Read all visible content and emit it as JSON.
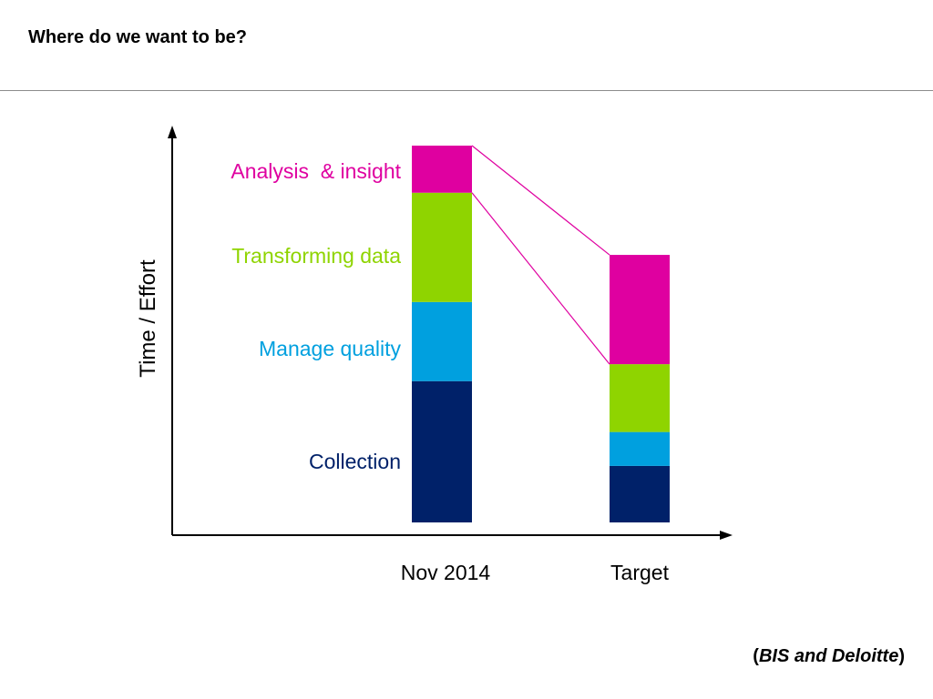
{
  "slide": {
    "title": "Where do we want to be?",
    "source_open": "(",
    "source_text": "BIS and Deloitte",
    "source_close": ")"
  },
  "colors": {
    "collection": "#002169",
    "manage_quality": "#00A0DF",
    "transforming_data": "#8FD400",
    "analysis_insight": "#DF00A0",
    "axis": "#000000"
  },
  "chart_data": {
    "type": "bar",
    "stacked": true,
    "categories": [
      "Nov 2014",
      "Target"
    ],
    "ylabel": "Time / Effort",
    "xlabel": "",
    "ylim": [
      0,
      100
    ],
    "y_ticks_shown": false,
    "grid": false,
    "legend_position": "left of first bar",
    "series": [
      {
        "name": "Collection",
        "color": "#002169",
        "values": [
          37.5,
          15
        ]
      },
      {
        "name": "Manage quality",
        "color": "#00A0DF",
        "values": [
          21,
          9
        ]
      },
      {
        "name": "Transforming data",
        "color": "#8FD400",
        "values": [
          29,
          18
        ]
      },
      {
        "name": "Analysis  & insight",
        "color": "#DF00A0",
        "values": [
          12.5,
          29
        ]
      }
    ],
    "connector_lines": "connect top of Transforming data and top of Analysis & insight from Nov 2014 to Target"
  }
}
